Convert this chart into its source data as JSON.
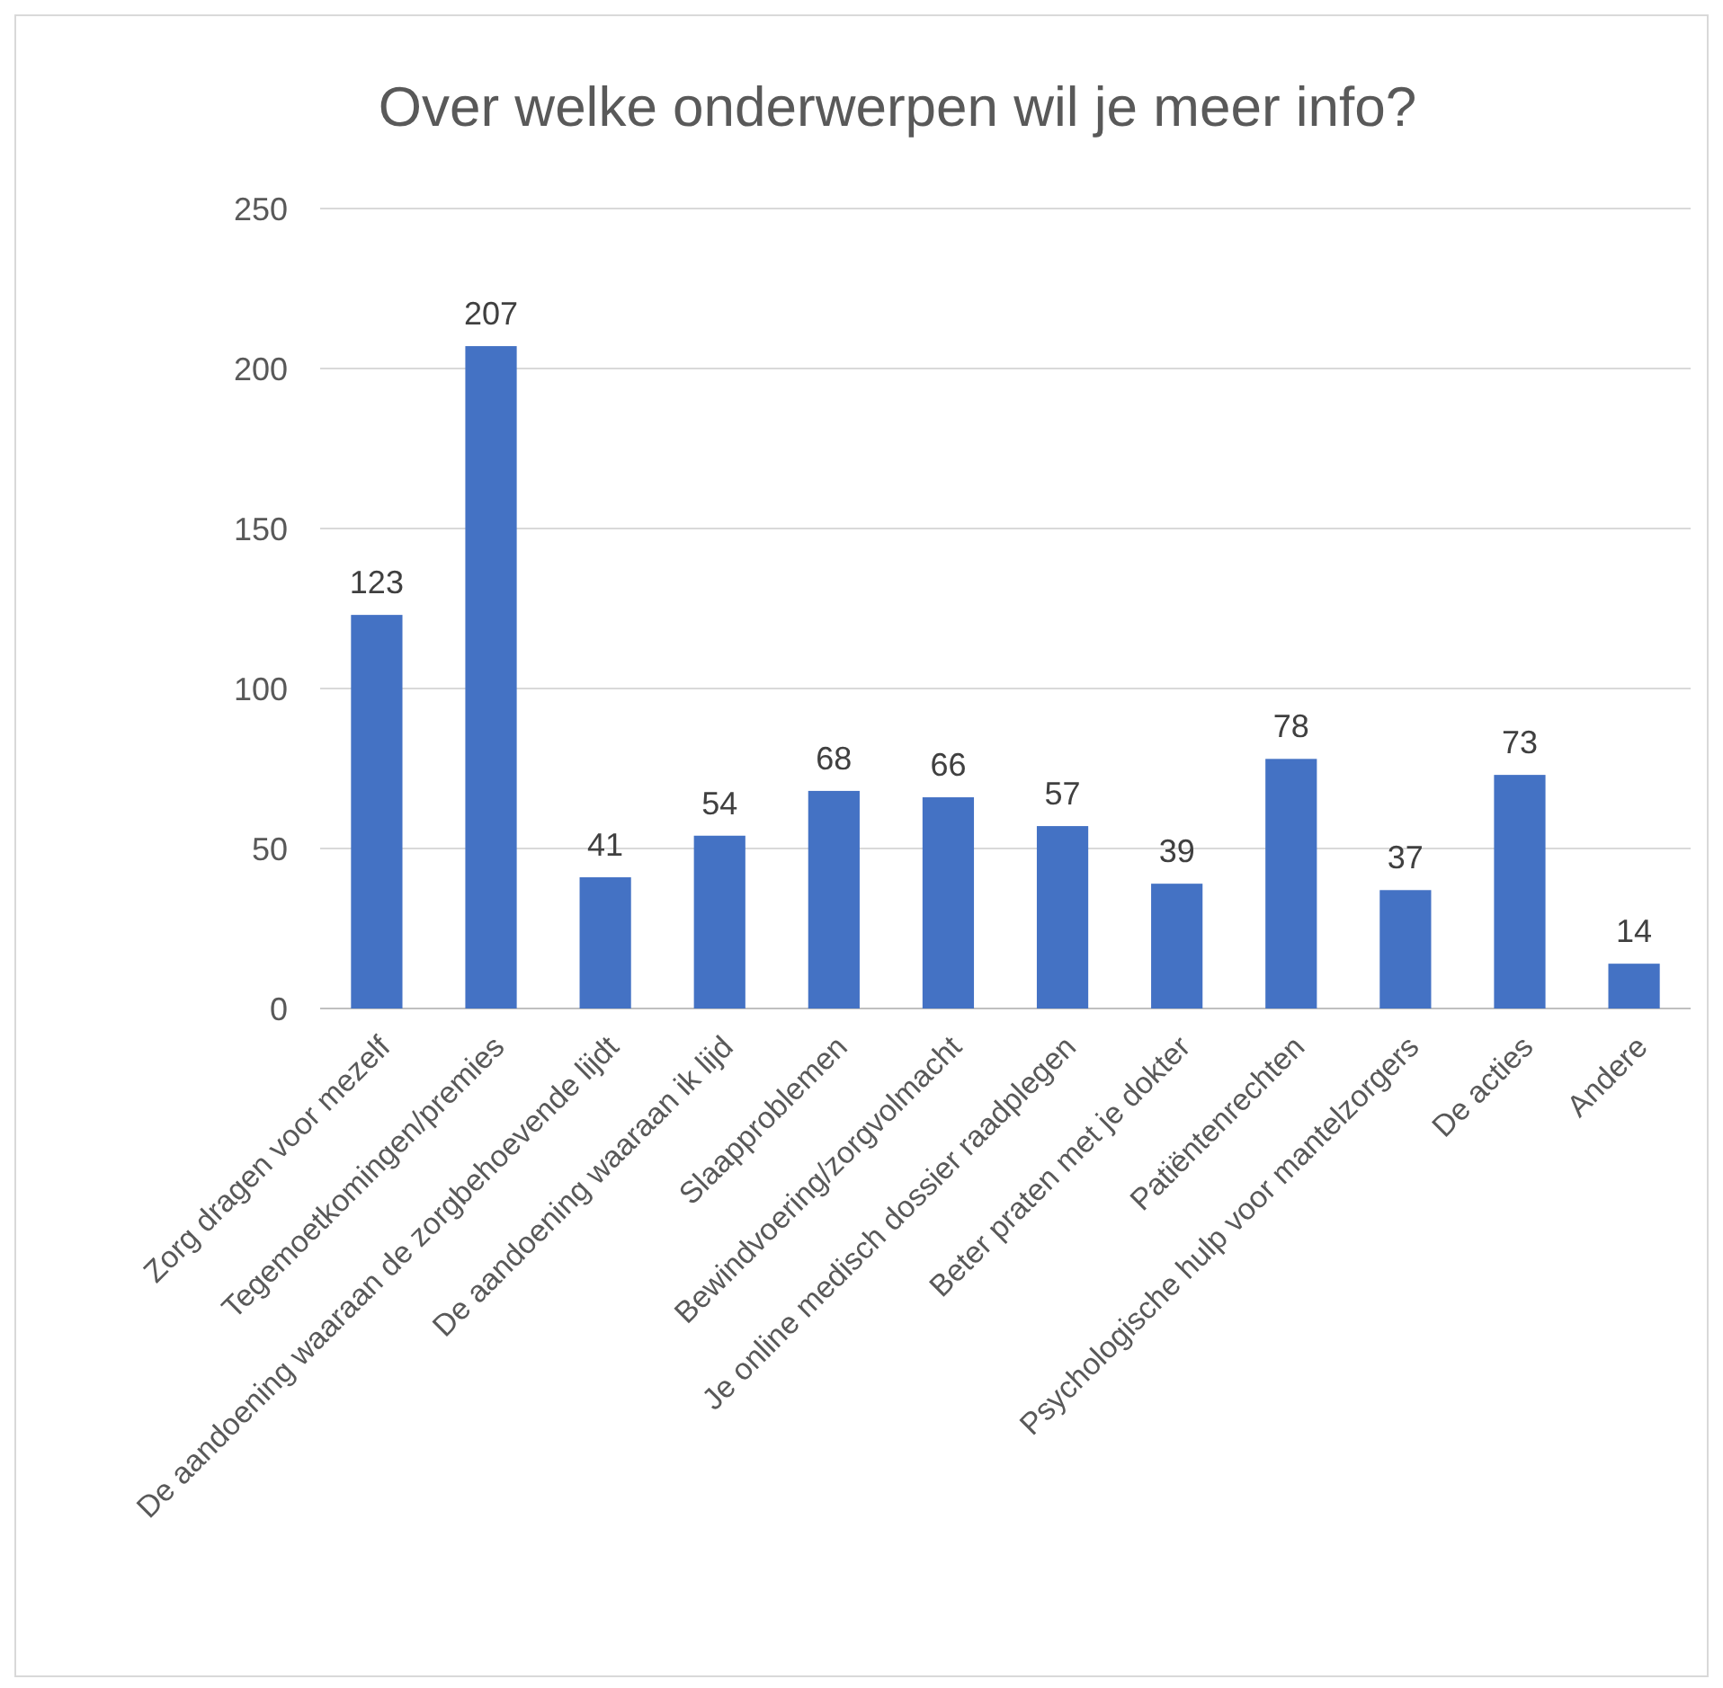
{
  "chart_data": {
    "type": "bar",
    "title": "Over welke onderwerpen wil je meer info?",
    "categories": [
      "Zorg dragen voor mezelf",
      "Tegemoetkomingen/premies",
      "De aandoening waaraan de zorgbehoevende lijdt",
      "De aandoening waaraan ik lijd",
      "Slaapproblemen",
      "Bewindvoering/zorgvolmacht",
      "Je online medisch dossier raadplegen",
      "Beter praten met je dokter",
      "Patiëntenrechten",
      "Psychologische hulp voor mantelzorgers",
      "De acties",
      "Andere"
    ],
    "values": [
      123,
      207,
      41,
      54,
      68,
      66,
      57,
      39,
      78,
      37,
      73,
      14
    ],
    "color": "#4472c4",
    "ylim": [
      0,
      250
    ],
    "yticks": [
      0,
      50,
      100,
      150,
      200,
      250
    ],
    "grid": "y",
    "data_labels": true
  }
}
